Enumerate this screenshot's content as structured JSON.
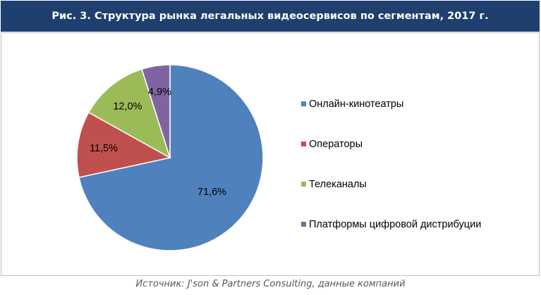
{
  "header": {
    "title": "Рис. 3. Структура рынка легальных видеосервисов по сегментам, 2017 г."
  },
  "footer": {
    "source": "Источник: J'son & Partners Consulting, данные компаний"
  },
  "chart_data": {
    "type": "pie",
    "title": "Рис. 3. Структура рынка легальных видеосервисов по сегментам, 2017 г.",
    "legend_position": "right",
    "slices": [
      {
        "name": "Онлайн-кинотеатры",
        "value": 71.6,
        "label": "71,6%",
        "color": "#4f81bd"
      },
      {
        "name": "Операторы",
        "value": 11.5,
        "label": "11,5%",
        "color": "#c0504d"
      },
      {
        "name": "Телеканалы",
        "value": 12.0,
        "label": "12,0%",
        "color": "#9bbb59"
      },
      {
        "name": "Платформы цифровой дистрибуции",
        "value": 4.9,
        "label": "4,9%",
        "color": "#8064a2"
      }
    ]
  }
}
